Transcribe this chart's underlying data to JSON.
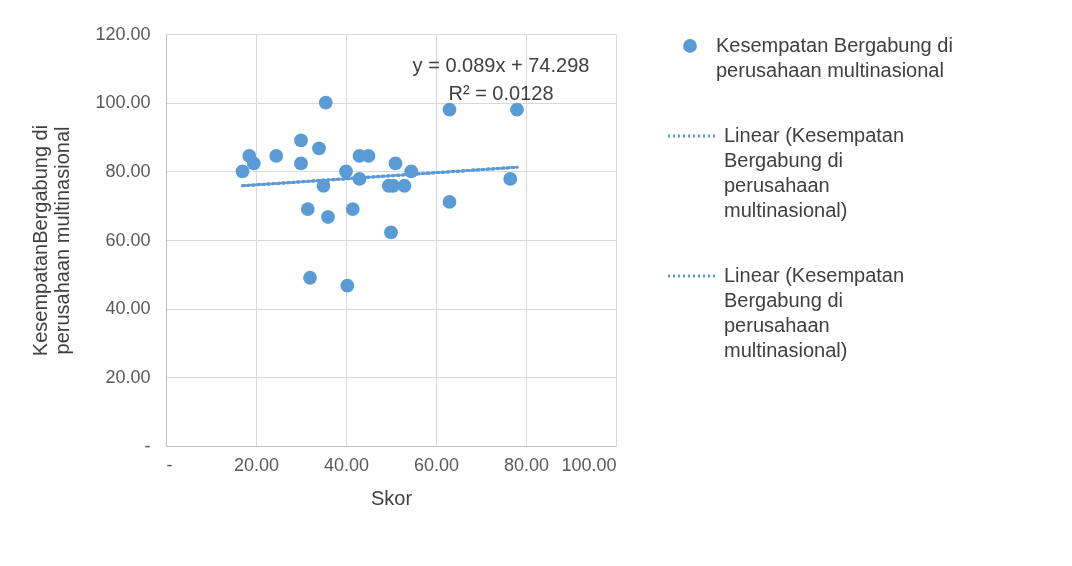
{
  "chart_data": {
    "type": "scatter",
    "xlabel": "Skor",
    "ylabel": "KesempatanBergabung di perusahaan multinasional",
    "xlim": [
      0,
      100
    ],
    "ylim": [
      0,
      120
    ],
    "xticks": [
      {
        "value": 0,
        "label": "-"
      },
      {
        "value": 20,
        "label": "20.00"
      },
      {
        "value": 40,
        "label": "40.00"
      },
      {
        "value": 60,
        "label": "60.00"
      },
      {
        "value": 80,
        "label": "80.00"
      },
      {
        "value": 100,
        "label": "100.00"
      }
    ],
    "yticks": [
      {
        "value": 0,
        "label": "-"
      },
      {
        "value": 20,
        "label": "20.00"
      },
      {
        "value": 40,
        "label": "40.00"
      },
      {
        "value": 60,
        "label": "60.00"
      },
      {
        "value": 80,
        "label": "80.00"
      },
      {
        "value": 100,
        "label": "100.00"
      },
      {
        "value": 120,
        "label": "120.00"
      }
    ],
    "grid": true,
    "legend": "right",
    "annotations": [
      "y = 0.089x + 74.298",
      "R² = 0.0128"
    ],
    "series": [
      {
        "name": "Kesempatan Bergabung di perusahaan multinasional",
        "color": "#5b9bd5",
        "marker": "circle",
        "x": [
          17,
          18.5,
          19.5,
          24.5,
          30,
          30,
          31.5,
          32,
          34,
          35,
          35.5,
          36,
          40,
          40.3,
          41.5,
          43,
          43,
          45,
          49.5,
          50,
          50.5,
          51,
          53,
          54.5,
          63,
          63,
          76.5,
          78
        ],
        "values": [
          80,
          84.5,
          82.3,
          84.5,
          89,
          82.3,
          69,
          49,
          86.7,
          75.8,
          100,
          66.7,
          80,
          46.7,
          69,
          84.5,
          77.8,
          84.5,
          75.8,
          62.2,
          75.8,
          82.3,
          75.8,
          80,
          98,
          71.1,
          77.8,
          98
        ]
      },
      {
        "name": "Linear (Kesempatan Bergabung di perusahaan multinasional)",
        "type": "line",
        "line_style": "dotted",
        "color": "#5b9bd5",
        "x": [
          17,
          78
        ],
        "values": [
          75.8,
          81.2
        ]
      },
      {
        "name": "Linear (Kesempatan Bergabung di perusahaan multinasional)",
        "type": "line",
        "line_style": "dotted",
        "color": "#5b9bd5",
        "x": [
          17,
          78
        ],
        "values": [
          75.8,
          81.2
        ]
      }
    ]
  }
}
